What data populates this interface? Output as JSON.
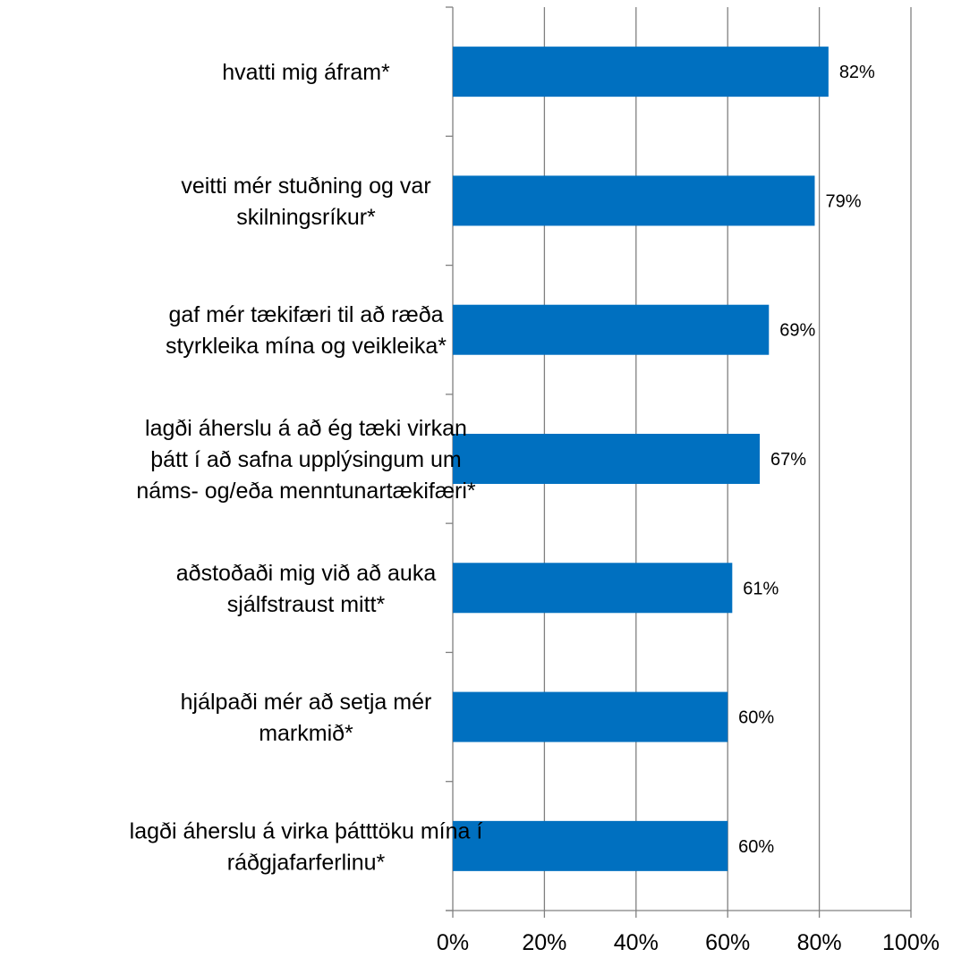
{
  "chart_data": {
    "type": "bar",
    "orientation": "horizontal",
    "categories": [
      [
        "hvatti mig áfram*"
      ],
      [
        "veitti mér stuðning og var",
        "skilningsríkur*"
      ],
      [
        "gaf mér tækifæri til að ræða",
        "styrkleika mína og veikleika*"
      ],
      [
        "lagði áherslu á að ég tæki virkan",
        "þátt í að safna upplýsingum um",
        "náms- og/eða menntunartækifæri*"
      ],
      [
        "aðstoðaði mig við að auka",
        "sjálfstraust mitt*"
      ],
      [
        "hjálpaði mér að setja mér",
        "markmið*"
      ],
      [
        "lagði áherslu á virka þátttöku mína í",
        "ráðgjafarferlinu*"
      ]
    ],
    "values": [
      82,
      79,
      69,
      67,
      61,
      60,
      60
    ],
    "data_labels": [
      "82%",
      "79%",
      "69%",
      "67%",
      "61%",
      "60%",
      "60%"
    ],
    "xlim": [
      0,
      100
    ],
    "x_ticks": [
      0,
      20,
      40,
      60,
      80,
      100
    ],
    "x_tick_labels": [
      "0%",
      "20%",
      "40%",
      "60%",
      "80%",
      "100%"
    ],
    "grid": "vertical",
    "legend": "none",
    "bar_color": "#0070C0",
    "grid_color": "#808080"
  }
}
